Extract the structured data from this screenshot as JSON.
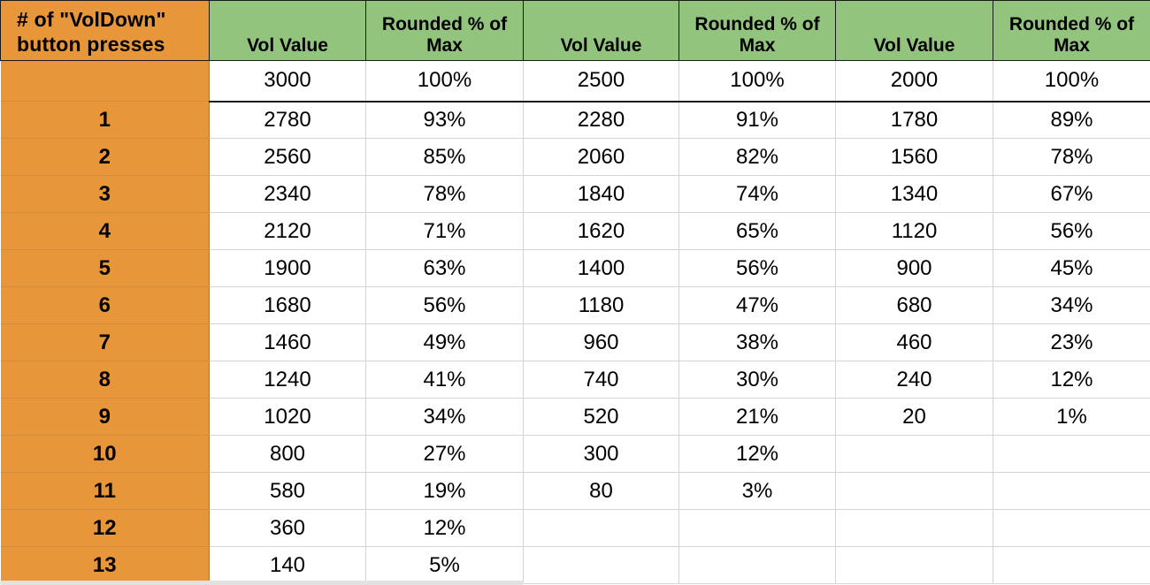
{
  "colors": {
    "first_column_fill": "#e8963a",
    "header_fill": "#93c47d",
    "grid_line": "#d4d4d4",
    "header_border": "#1a1a1a"
  },
  "headers": [
    "# of \"VolDown\" button presses",
    "Vol Value",
    "Rounded % of Max",
    "Vol Value",
    "Rounded % of Max",
    "Vol Value",
    "Rounded % of Max"
  ],
  "rows": [
    [
      "",
      "3000",
      "100%",
      "2500",
      "100%",
      "2000",
      "100%"
    ],
    [
      "1",
      "2780",
      "93%",
      "2280",
      "91%",
      "1780",
      "89%"
    ],
    [
      "2",
      "2560",
      "85%",
      "2060",
      "82%",
      "1560",
      "78%"
    ],
    [
      "3",
      "2340",
      "78%",
      "1840",
      "74%",
      "1340",
      "67%"
    ],
    [
      "4",
      "2120",
      "71%",
      "1620",
      "65%",
      "1120",
      "56%"
    ],
    [
      "5",
      "1900",
      "63%",
      "1400",
      "56%",
      "900",
      "45%"
    ],
    [
      "6",
      "1680",
      "56%",
      "1180",
      "47%",
      "680",
      "34%"
    ],
    [
      "7",
      "1460",
      "49%",
      "960",
      "38%",
      "460",
      "23%"
    ],
    [
      "8",
      "1240",
      "41%",
      "740",
      "30%",
      "240",
      "12%"
    ],
    [
      "9",
      "1020",
      "34%",
      "520",
      "21%",
      "20",
      "1%"
    ],
    [
      "10",
      "800",
      "27%",
      "300",
      "12%",
      "",
      ""
    ],
    [
      "11",
      "580",
      "19%",
      "80",
      "3%",
      "",
      ""
    ],
    [
      "12",
      "360",
      "12%",
      "",
      "",
      "",
      ""
    ],
    [
      "13",
      "140",
      "5%",
      "",
      "",
      "",
      ""
    ]
  ]
}
